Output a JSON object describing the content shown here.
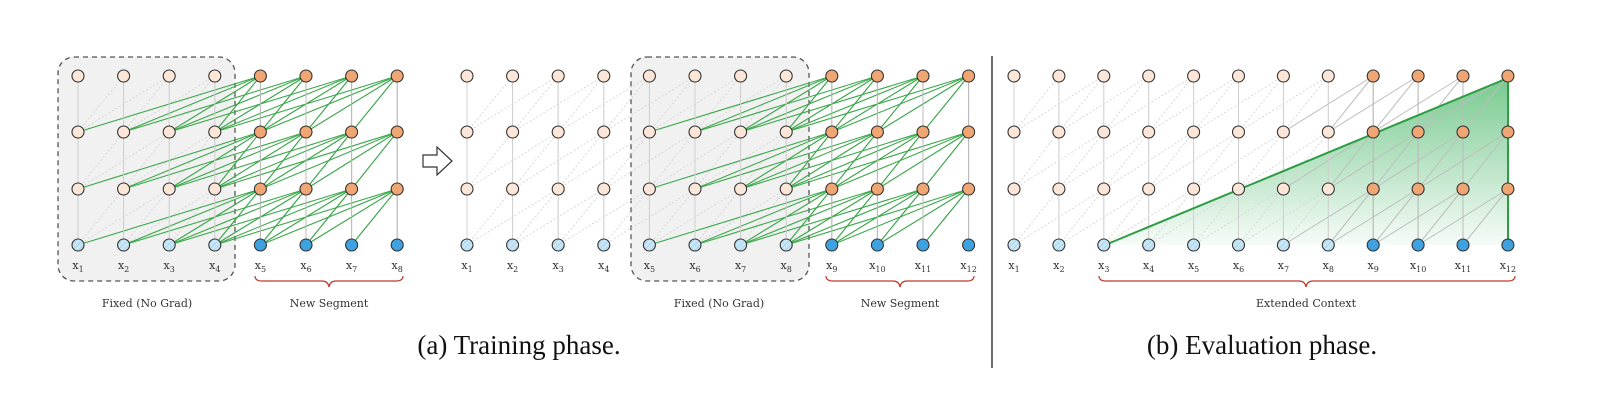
{
  "panels": {
    "training": {
      "caption": "(a) Training phase.",
      "stage1": {
        "tokens": [
          "x1",
          "x2",
          "x3",
          "x4",
          "x5",
          "x6",
          "x7",
          "x8"
        ],
        "fixed_label": "Fixed (No Grad)",
        "new_label": "New Segment"
      },
      "stage2": {
        "tokens": [
          "x1",
          "x2",
          "x3",
          "x4",
          "x5",
          "x6",
          "x7",
          "x8",
          "x9",
          "x10",
          "x11",
          "x12"
        ],
        "fixed_label": "Fixed (No Grad)",
        "new_label": "New Segment"
      }
    },
    "evaluation": {
      "caption": "(b) Evaluation phase.",
      "tokens": [
        "x1",
        "x2",
        "x3",
        "x4",
        "x5",
        "x6",
        "x7",
        "x8",
        "x9",
        "x10",
        "x11",
        "x12"
      ],
      "context_label": "Extended Context"
    }
  },
  "colors": {
    "fixed_hidden": "#fbe6d8",
    "active_hidden": "#f0a673",
    "fixed_input": "#c8e6f5",
    "active_input": "#3ea2e0",
    "green_link": "#3aa84a",
    "grey_link": "#b8b8b8",
    "bracket": "#c0392b",
    "fixed_box": "#f1f1f1"
  }
}
